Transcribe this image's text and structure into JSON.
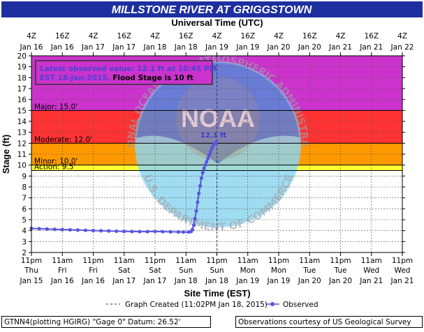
{
  "title": "MILLSTONE RIVER AT GRIGGSTOWN",
  "top_axis_title": "Universal Time (UTC)",
  "bottom_axis_title": "Site Time (EST)",
  "ylabel": "Stage (ft)",
  "info_box": {
    "line1": "Latest observed value: 12.1 ft at 10:45 PM",
    "line2_observed": "EST 18-Jan-2015.",
    "line2_flood": "Flood Stage is 10 ft"
  },
  "legend": {
    "created": "Graph Created (11:02PM Jan 18, 2015)",
    "observed": "Observed"
  },
  "footer": {
    "left": "GTNN4(plotting HGIRG) \"Gage 0\" Datum: 26.52'",
    "right": "Observations courtesy of US Geological Survey"
  },
  "watermark": {
    "logo_text": "NOAA",
    "ring_top": "NATIONAL OCEANIC AND ATMOSPHERIC ADMINISTRATION",
    "ring_bottom": "U.S. DEPARTMENT OF COMMERCE"
  },
  "colors": {
    "title_bg": "#1e2fa0",
    "major": "#cc33cc",
    "moderate": "#ff3333",
    "minor": "#ff9900",
    "action": "#ffff33",
    "observed": "#5a55e0",
    "info_text": "#4d41d6"
  },
  "chart_data": {
    "type": "line",
    "ylim": [
      2,
      20
    ],
    "yticks": [
      2,
      3,
      4,
      5,
      6,
      7,
      8,
      9,
      10,
      11,
      12,
      13,
      14,
      15,
      16,
      17,
      18,
      19,
      20
    ],
    "xlim_est": [
      "2015-01-15 23:00",
      "2015-01-21 23:00"
    ],
    "top_ticks": [
      {
        "hour": "4Z",
        "date": "Jan 16"
      },
      {
        "hour": "16Z",
        "date": "Jan 16"
      },
      {
        "hour": "4Z",
        "date": "Jan 17"
      },
      {
        "hour": "16Z",
        "date": "Jan 17"
      },
      {
        "hour": "4Z",
        "date": "Jan 18"
      },
      {
        "hour": "16Z",
        "date": "Jan 18"
      },
      {
        "hour": "4Z",
        "date": "Jan 19"
      },
      {
        "hour": "16Z",
        "date": "Jan 19"
      },
      {
        "hour": "4Z",
        "date": "Jan 20"
      },
      {
        "hour": "16Z",
        "date": "Jan 20"
      },
      {
        "hour": "4Z",
        "date": "Jan 21"
      },
      {
        "hour": "16Z",
        "date": "Jan 21"
      },
      {
        "hour": "4Z",
        "date": "Jan 22"
      }
    ],
    "bottom_ticks": [
      {
        "time": "11pm",
        "day": "Thu",
        "date": "Jan 15"
      },
      {
        "time": "11am",
        "day": "Fri",
        "date": "Jan 16"
      },
      {
        "time": "11pm",
        "day": "Fri",
        "date": "Jan 16"
      },
      {
        "time": "11am",
        "day": "Sat",
        "date": "Jan 17"
      },
      {
        "time": "11pm",
        "day": "Sat",
        "date": "Jan 17"
      },
      {
        "time": "11am",
        "day": "Sun",
        "date": "Jan 18"
      },
      {
        "time": "11pm",
        "day": "Sun",
        "date": "Jan 18"
      },
      {
        "time": "11am",
        "day": "Mon",
        "date": "Jan 19"
      },
      {
        "time": "11pm",
        "day": "Mon",
        "date": "Jan 19"
      },
      {
        "time": "11am",
        "day": "Tue",
        "date": "Jan 20"
      },
      {
        "time": "11pm",
        "day": "Tue",
        "date": "Jan 20"
      },
      {
        "time": "11am",
        "day": "Wed",
        "date": "Jan 21"
      },
      {
        "time": "11pm",
        "day": "Wed",
        "date": "Jan 21"
      }
    ],
    "bands": [
      {
        "name": "Major",
        "label": "Major: 15.0'",
        "from": 15,
        "to": 20
      },
      {
        "name": "Moderate",
        "label": "Moderate: 12.0'",
        "from": 12,
        "to": 15
      },
      {
        "name": "Minor",
        "label": "Minor: 10.0'",
        "from": 10,
        "to": 12
      },
      {
        "name": "Action",
        "label": "Action: 9.5'",
        "from": 9.5,
        "to": 10
      }
    ],
    "graph_created_est": "2015-01-18 23:02",
    "latest_label": "12.1 ft",
    "series": [
      {
        "name": "Observed",
        "points": [
          [
            "2015-01-15 23:00",
            4.2
          ],
          [
            "2015-01-16 02:00",
            4.18
          ],
          [
            "2015-01-16 05:00",
            4.15
          ],
          [
            "2015-01-16 08:00",
            4.12
          ],
          [
            "2015-01-16 11:00",
            4.1
          ],
          [
            "2015-01-16 14:00",
            4.08
          ],
          [
            "2015-01-16 17:00",
            4.05
          ],
          [
            "2015-01-16 20:00",
            4.03
          ],
          [
            "2015-01-16 23:00",
            4.01
          ],
          [
            "2015-01-17 02:00",
            3.99
          ],
          [
            "2015-01-17 05:00",
            3.97
          ],
          [
            "2015-01-17 08:00",
            3.95
          ],
          [
            "2015-01-17 11:00",
            3.93
          ],
          [
            "2015-01-17 14:00",
            3.92
          ],
          [
            "2015-01-17 17:00",
            3.91
          ],
          [
            "2015-01-17 20:00",
            3.91
          ],
          [
            "2015-01-17 23:00",
            3.92
          ],
          [
            "2015-01-18 02:00",
            3.91
          ],
          [
            "2015-01-18 05:00",
            3.89
          ],
          [
            "2015-01-18 08:00",
            3.88
          ],
          [
            "2015-01-18 10:00",
            3.87
          ],
          [
            "2015-01-18 12:00",
            3.87
          ],
          [
            "2015-01-18 13:00",
            3.92
          ],
          [
            "2015-01-18 13:30",
            4.1
          ],
          [
            "2015-01-18 14:00",
            4.5
          ],
          [
            "2015-01-18 14:30",
            5.1
          ],
          [
            "2015-01-18 15:00",
            5.8
          ],
          [
            "2015-01-18 15:30",
            6.6
          ],
          [
            "2015-01-18 16:00",
            7.4
          ],
          [
            "2015-01-18 16:30",
            8.1
          ],
          [
            "2015-01-18 17:00",
            8.8
          ],
          [
            "2015-01-18 17:30",
            9.3
          ],
          [
            "2015-01-18 18:00",
            9.7
          ],
          [
            "2015-01-18 18:30",
            10.0
          ],
          [
            "2015-01-18 19:00",
            10.3
          ],
          [
            "2015-01-18 19:30",
            10.6
          ],
          [
            "2015-01-18 20:00",
            10.9
          ],
          [
            "2015-01-18 20:30",
            11.2
          ],
          [
            "2015-01-18 21:00",
            11.5
          ],
          [
            "2015-01-18 21:30",
            11.75
          ],
          [
            "2015-01-18 22:00",
            11.95
          ],
          [
            "2015-01-18 22:30",
            12.05
          ],
          [
            "2015-01-18 22:45",
            12.1
          ]
        ]
      }
    ]
  }
}
